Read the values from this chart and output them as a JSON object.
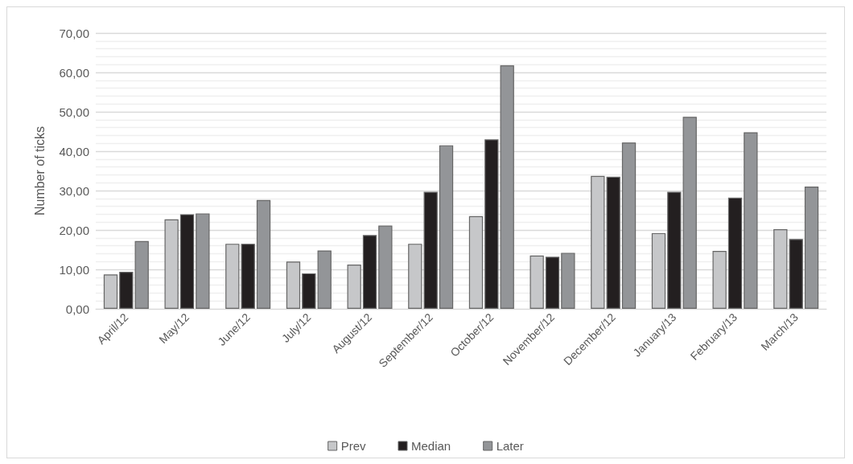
{
  "chart_data": {
    "type": "bar",
    "ylabel": "Number of ticks",
    "categories": [
      "April/12",
      "May/12",
      "June/12",
      "July/12",
      "August/12",
      "September/12",
      "October/12",
      "November/12",
      "December/12",
      "January/13",
      "February/13",
      "March/13"
    ],
    "series": [
      {
        "name": "Prev",
        "color": "#c6c7c9",
        "values": [
          8.7,
          22.7,
          16.5,
          12.0,
          11.2,
          16.5,
          23.5,
          13.5,
          33.7,
          19.2,
          14.7,
          20.2
        ]
      },
      {
        "name": "Median",
        "color": "#231f20",
        "values": [
          9.4,
          24.0,
          16.5,
          9.0,
          18.7,
          29.7,
          43.0,
          13.2,
          33.5,
          29.7,
          28.2,
          17.7
        ]
      },
      {
        "name": "Later",
        "color": "#939598",
        "values": [
          17.2,
          24.2,
          27.6,
          14.8,
          21.1,
          41.5,
          61.8,
          14.2,
          42.2,
          48.7,
          44.8,
          31.0
        ]
      }
    ],
    "ylim": [
      0,
      70
    ],
    "yticks": [
      {
        "value": 0,
        "label": "0,00"
      },
      {
        "value": 2,
        "label": null
      },
      {
        "value": 4,
        "label": null
      },
      {
        "value": 6,
        "label": null
      },
      {
        "value": 8,
        "label": null
      },
      {
        "value": 10,
        "label": "10,00"
      },
      {
        "value": 12,
        "label": null
      },
      {
        "value": 14,
        "label": null
      },
      {
        "value": 16,
        "label": null
      },
      {
        "value": 18,
        "label": null
      },
      {
        "value": 20,
        "label": "20,00"
      },
      {
        "value": 22,
        "label": null
      },
      {
        "value": 24,
        "label": null
      },
      {
        "value": 26,
        "label": null
      },
      {
        "value": 28,
        "label": null
      },
      {
        "value": 30,
        "label": "30,00"
      },
      {
        "value": 32,
        "label": null
      },
      {
        "value": 34,
        "label": null
      },
      {
        "value": 36,
        "label": null
      },
      {
        "value": 38,
        "label": null
      },
      {
        "value": 40,
        "label": "40,00"
      },
      {
        "value": 42,
        "label": null
      },
      {
        "value": 44,
        "label": null
      },
      {
        "value": 46,
        "label": null
      },
      {
        "value": 48,
        "label": null
      },
      {
        "value": 50,
        "label": "50,00"
      },
      {
        "value": 52,
        "label": null
      },
      {
        "value": 54,
        "label": null
      },
      {
        "value": 56,
        "label": null
      },
      {
        "value": 58,
        "label": null
      },
      {
        "value": 60,
        "label": "60,00"
      },
      {
        "value": 62,
        "label": null
      },
      {
        "value": 64,
        "label": null
      },
      {
        "value": 66,
        "label": null
      },
      {
        "value": 68,
        "label": null
      },
      {
        "value": 70,
        "label": "70,00"
      }
    ],
    "grid": true,
    "legend": "bottom"
  }
}
